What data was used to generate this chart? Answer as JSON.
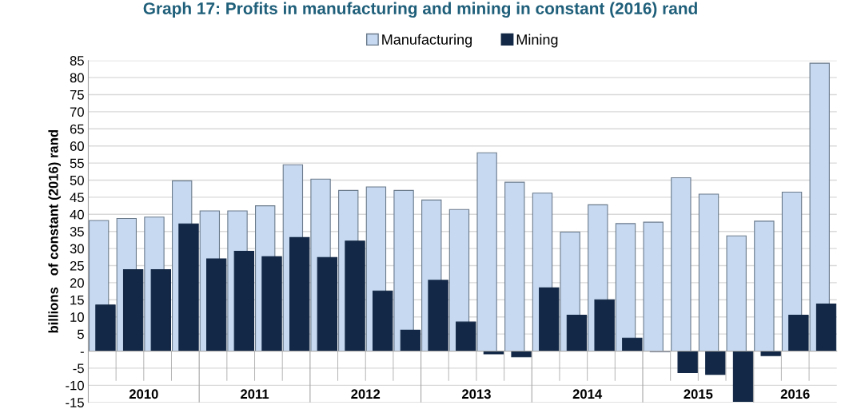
{
  "chart_data": {
    "type": "bar",
    "title": "Graph 17: Profits in manufacturing and mining in constant (2016) rand",
    "ylabel": "billions   of constant (2016) rand",
    "categories": [
      null,
      null,
      null,
      null,
      null,
      null,
      null,
      null,
      null,
      null,
      null,
      null,
      null,
      null,
      null,
      null,
      null,
      null,
      null,
      null,
      null,
      null,
      null,
      null,
      null,
      null,
      null
    ],
    "annotations": [
      "2010",
      "2011",
      "2012",
      "2013",
      "2014",
      "2015",
      "2016"
    ],
    "series": [
      {
        "name": "Manufacturing",
        "color": "#c6d9f1",
        "values": [
          38.2,
          38.8,
          39.2,
          49.8,
          41,
          41,
          42.5,
          54.5,
          50.3,
          47,
          48,
          47,
          44.2,
          41.4,
          58,
          49.4,
          46.2,
          34.8,
          42.8,
          37.3,
          37.7,
          50.7,
          45.9,
          33.7,
          38,
          46.5,
          84.2
        ]
      },
      {
        "name": "Mining",
        "color": "#132846",
        "values": [
          13.5,
          23.8,
          23.8,
          37.2,
          27,
          29.2,
          27.6,
          33.2,
          27.4,
          32.2,
          17.6,
          6.1,
          20.7,
          8.5,
          -0.8,
          -1.7,
          18.5,
          10.5,
          15,
          3.8,
          -0.1,
          -6.3,
          -6.8,
          -14.7,
          -1.3,
          10.5,
          13.8
        ]
      }
    ],
    "ylim": [
      -15,
      85
    ],
    "yticks": [
      -15,
      -10,
      -5,
      {
        "value": 0,
        "label": "-"
      },
      5,
      10,
      15,
      20,
      25,
      30,
      35,
      40,
      45,
      50,
      55,
      60,
      65,
      70,
      75,
      80,
      85
    ],
    "grid": "y",
    "legend": "top"
  }
}
